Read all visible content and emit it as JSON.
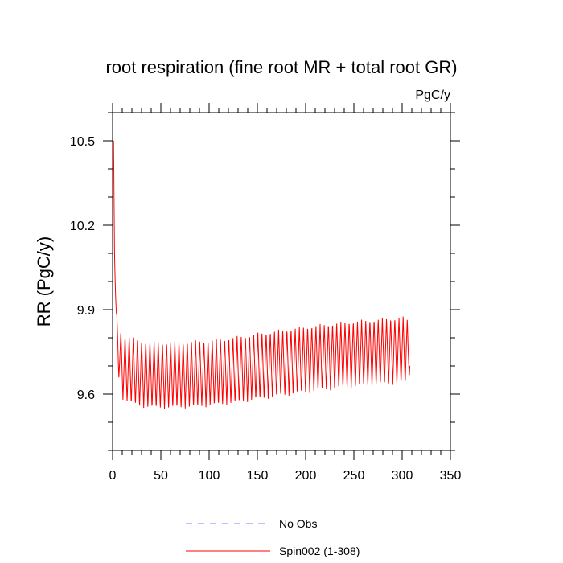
{
  "chart_data": {
    "type": "line",
    "title": "root respiration (fine root MR + total root GR)",
    "units_label": "PgC/y",
    "xlabel": "",
    "ylabel": "RR  (PgC/y)",
    "xlim": [
      0,
      350
    ],
    "ylim": [
      9.4,
      10.6
    ],
    "x_ticks": [
      0,
      50,
      100,
      150,
      200,
      250,
      300,
      350
    ],
    "x_tick_labels": [
      "0",
      "50",
      "100",
      "150",
      "200",
      "250",
      "300",
      "350"
    ],
    "y_ticks": [
      9.6,
      9.9,
      10.2,
      10.5
    ],
    "y_tick_labels": [
      "9.6",
      "9.9",
      "10.2",
      "10.5"
    ],
    "series": [
      {
        "name": "Spin002 (1-308)",
        "color": "#ff0000",
        "style": "solid",
        "years": [
          1,
          308
        ],
        "x": [
          1,
          2,
          4,
          6,
          8,
          10,
          12,
          14,
          18,
          22,
          26,
          30,
          35,
          40,
          45,
          50,
          55,
          60,
          65,
          70,
          75,
          80,
          85,
          90,
          95,
          100,
          110,
          120,
          130,
          140,
          150,
          160,
          170,
          180,
          190,
          200,
          210,
          220,
          230,
          240,
          250,
          260,
          270,
          280,
          290,
          300,
          305,
          308
        ],
        "mean": [
          10.5,
          10.1,
          9.84,
          9.76,
          9.72,
          9.7,
          9.69,
          9.69,
          9.685,
          9.68,
          9.676,
          9.672,
          9.67,
          9.668,
          9.667,
          9.667,
          9.667,
          9.667,
          9.668,
          9.668,
          9.669,
          9.67,
          9.671,
          9.672,
          9.673,
          9.674,
          9.678,
          9.682,
          9.687,
          9.692,
          9.698,
          9.703,
          9.708,
          9.713,
          9.718,
          9.722,
          9.727,
          9.731,
          9.735,
          9.739,
          9.742,
          9.745,
          9.748,
          9.751,
          9.753,
          9.755,
          9.756,
          9.73
        ],
        "seasonal_amplitude": [
          0,
          0,
          0.06,
          0.09,
          0.11,
          0.115,
          0.118,
          0.12,
          0.12,
          0.12,
          0.12,
          0.12,
          0.12,
          0.12,
          0.12,
          0.12,
          0.12,
          0.12,
          0.12,
          0.12,
          0.12,
          0.12,
          0.12,
          0.12,
          0.12,
          0.12,
          0.12,
          0.12,
          0.12,
          0.12,
          0.12,
          0.12,
          0.12,
          0.12,
          0.12,
          0.12,
          0.12,
          0.12,
          0.12,
          0.12,
          0.12,
          0.12,
          0.12,
          0.12,
          0.12,
          0.12,
          0.12,
          0.06
        ],
        "oscillation_period_years": 4.3
      },
      {
        "name": "No Obs",
        "color": "#8080ff",
        "style": "dashed",
        "x": [],
        "mean": []
      }
    ],
    "legend": [
      {
        "label": "No Obs",
        "color": "#8080ff",
        "style": "dashed"
      },
      {
        "label": "Spin002 (1-308)",
        "color": "#ff0000",
        "style": "solid"
      }
    ],
    "legend_position": "bottom-center",
    "grid": false
  }
}
